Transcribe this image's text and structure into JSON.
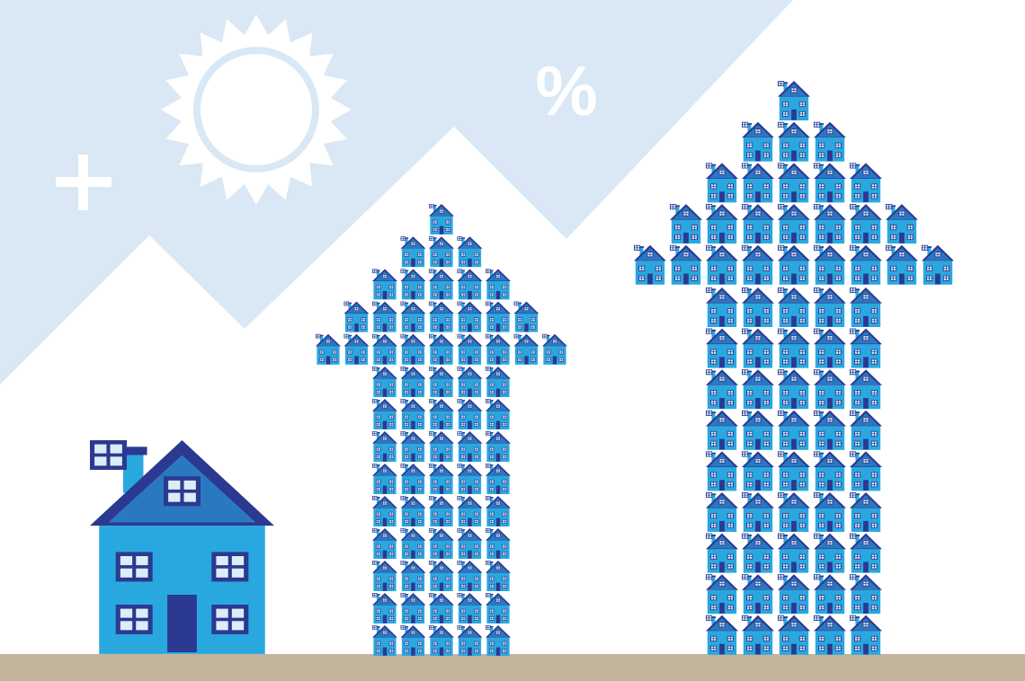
{
  "colors": {
    "sky": "#d9e8f4",
    "ground": "#c2b59b",
    "house_body": "#29a8e0",
    "roof_outline": "#2b3990",
    "roof_inner": "#2a78c0",
    "window_pane": "#dcedf8",
    "symbol": "#ffffff"
  },
  "symbols": {
    "percent": "%",
    "plus": "+"
  },
  "icons": [
    "sun-icon",
    "plus-icon",
    "percent-icon",
    "house-icon"
  ],
  "arrows": [
    {
      "name": "small-arrow",
      "head_rows": [
        1,
        3,
        5,
        7,
        9
      ],
      "shaft_columns": 5,
      "shaft_rows": 9
    },
    {
      "name": "large-arrow",
      "head_rows": [
        1,
        3,
        5,
        7,
        9
      ],
      "shaft_columns": 5,
      "shaft_rows": 9
    }
  ]
}
